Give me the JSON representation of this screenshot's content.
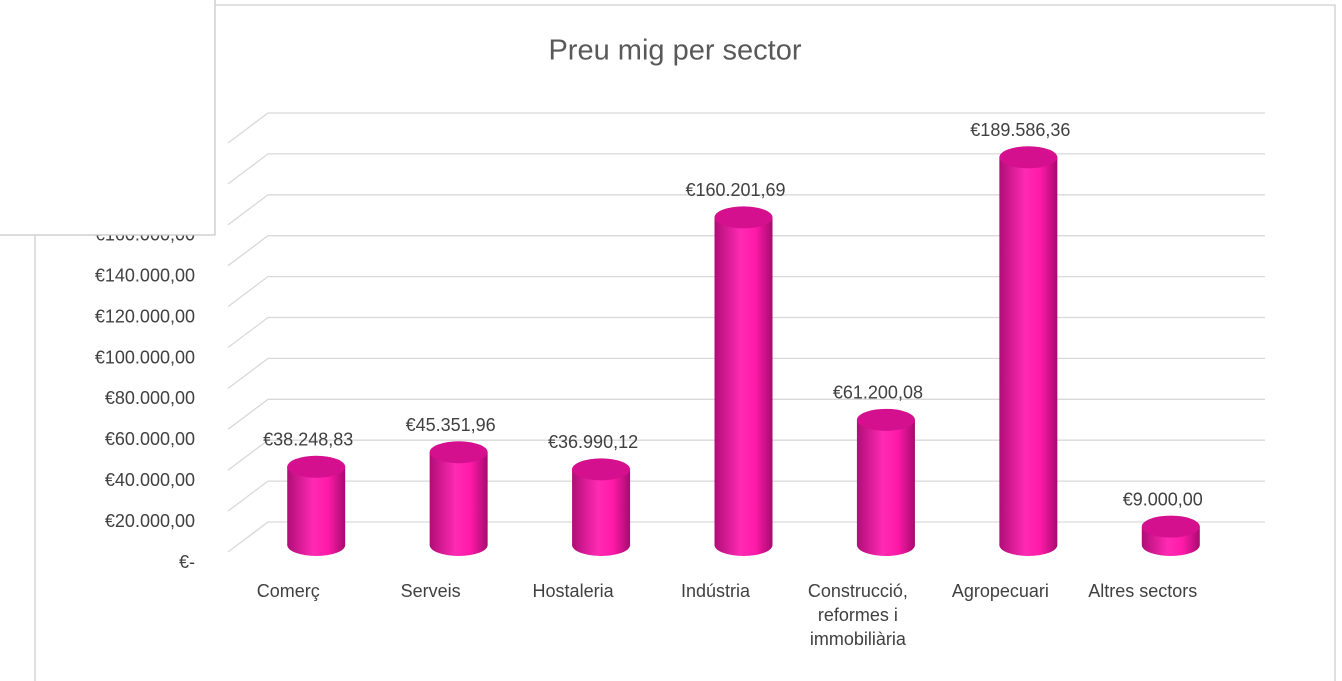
{
  "chart_data": {
    "type": "bar3d",
    "title": "Preu mig per sector",
    "categories": [
      "Comerç",
      "Serveis",
      "Hostaleria",
      "Indústria",
      "Construcció, reformes i immobiliària",
      "Agropecuari",
      "Altres sectors"
    ],
    "values": [
      38248.83,
      45351.96,
      36990.12,
      160201.69,
      61200.08,
      189586.36,
      9000.0
    ],
    "value_labels": [
      "€38.248,83",
      "€45.351,96",
      "€36.990,12",
      "€160.201,69",
      "€61.200,08",
      "€189.586,36",
      "€9.000,00"
    ],
    "color": "#ff1aa8",
    "ylim": [
      0,
      200000
    ],
    "yticks": [
      {
        "value": 0,
        "label": "€-"
      },
      {
        "value": 20000,
        "label": "€20.000,00"
      },
      {
        "value": 40000,
        "label": "€40.000,00"
      },
      {
        "value": 60000,
        "label": "€60.000,00"
      },
      {
        "value": 80000,
        "label": "€80.000,00"
      },
      {
        "value": 100000,
        "label": "€100.000,00"
      },
      {
        "value": 120000,
        "label": "€120.000,00"
      },
      {
        "value": 140000,
        "label": "€140.000,00"
      },
      {
        "value": 160000,
        "label": "€160.000,00"
      },
      180000,
      200000
    ],
    "grid": true
  }
}
